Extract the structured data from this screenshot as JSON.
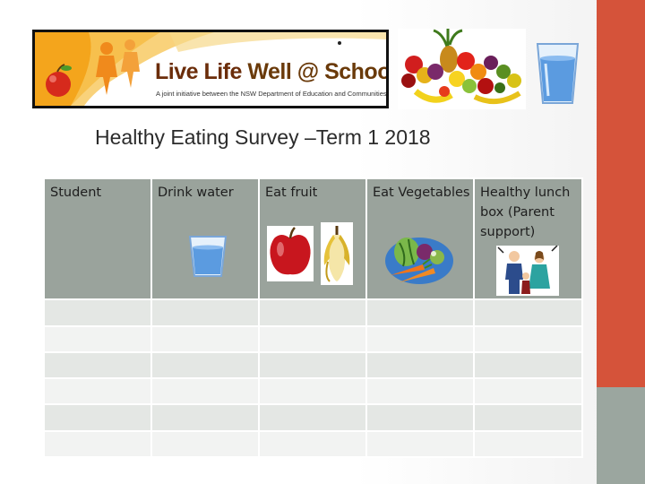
{
  "banner": {
    "title_live": "Live Life ",
    "title_rest": "Well @ School",
    "tagline": "A joint initiative between the NSW Department of Education and Communities and NSW Health"
  },
  "survey": {
    "title": "Healthy Eating Survey –Term 1 2018",
    "columns": [
      {
        "label": "Student",
        "icon": ""
      },
      {
        "label": "Drink water",
        "icon": "water-glass-icon"
      },
      {
        "label": "Eat fruit",
        "icon": "apple-banana-icon"
      },
      {
        "label": "Eat Vegetables",
        "icon": "vegetables-icon"
      },
      {
        "label": "Healthy lunch box (Parent support)",
        "icon": "family-icon"
      }
    ],
    "row_count": 6
  },
  "colors": {
    "accent_red": "#d5533a",
    "accent_gray": "#9ba69f",
    "header_cell": "#9aa39c",
    "row_light": "#f2f3f2",
    "row_mid": "#e4e7e4"
  }
}
